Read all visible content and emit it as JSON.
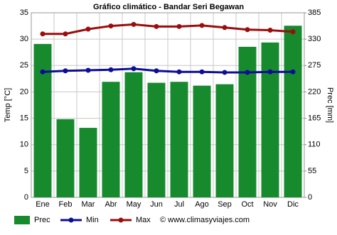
{
  "chart_data": {
    "type": "bar",
    "title": "Gráfico climático - Bandar Seri Begawan",
    "categories": [
      "Ene",
      "Feb",
      "Mar",
      "Abr",
      "May",
      "Jun",
      "Jul",
      "Ago",
      "Sep",
      "Oct",
      "Nov",
      "Dic"
    ],
    "series": [
      {
        "name": "Prec",
        "type": "bar",
        "axis": "y2",
        "color": "#178a2e",
        "values": [
          320,
          163,
          145,
          241,
          261,
          239,
          241,
          233,
          236,
          314,
          323,
          358
        ]
      },
      {
        "name": "Min",
        "type": "line",
        "color": "#0d0d96",
        "values": [
          23.8,
          24.0,
          24.1,
          24.2,
          24.4,
          24.0,
          23.8,
          23.8,
          23.7,
          23.7,
          23.8,
          23.8
        ]
      },
      {
        "name": "Max",
        "type": "line",
        "color": "#9b0d0d",
        "values": [
          31.0,
          31.0,
          31.9,
          32.5,
          32.8,
          32.4,
          32.4,
          32.6,
          32.2,
          31.8,
          31.7,
          31.4
        ]
      }
    ],
    "ylabel": "Temp [°C]",
    "y2label": "Prec [mm]",
    "ylim": [
      0,
      35
    ],
    "yticks": [
      0,
      5,
      10,
      15,
      20,
      25,
      30,
      35
    ],
    "y2lim": [
      0,
      385
    ],
    "y2ticks": [
      0,
      55,
      110,
      165,
      220,
      275,
      330,
      385
    ],
    "grid": true,
    "legend": "bottom",
    "source": "© www.climasyviajes.com"
  }
}
